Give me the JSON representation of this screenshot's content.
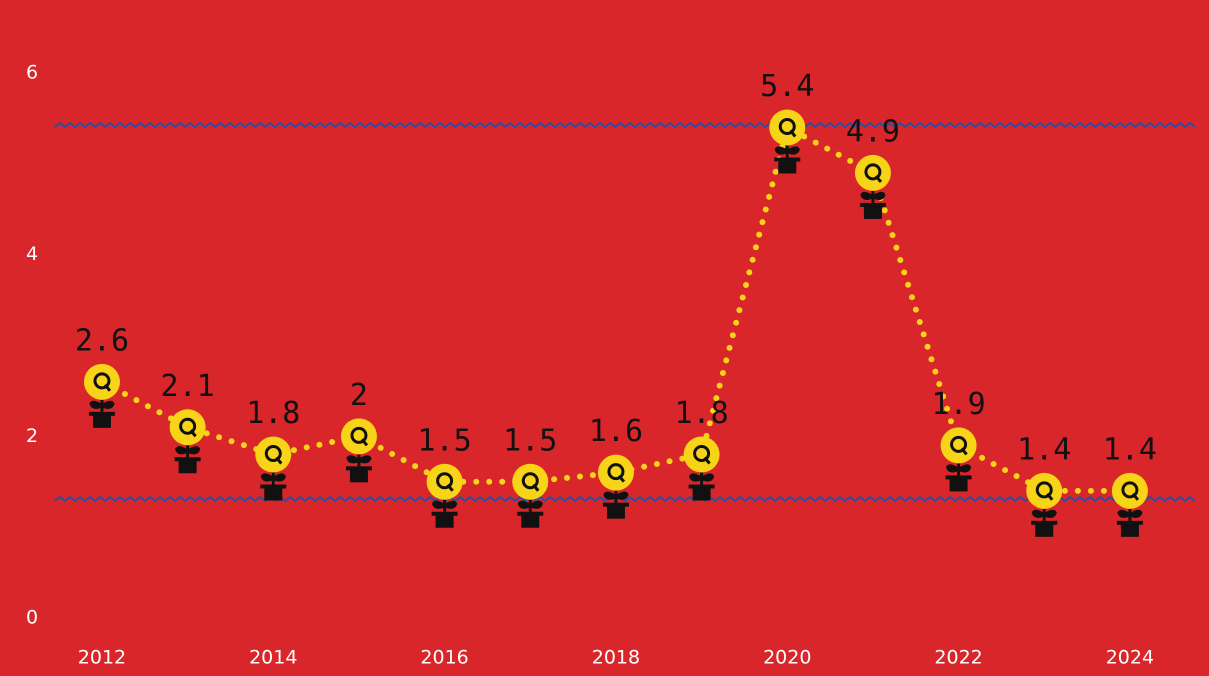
{
  "chart_data": {
    "type": "line",
    "x": [
      2012,
      2013,
      2014,
      2015,
      2016,
      2017,
      2018,
      2019,
      2020,
      2021,
      2022,
      2023,
      2024
    ],
    "series": [
      {
        "color": "#f7d417",
        "values": [
          2.6,
          2.1,
          1.8,
          2.0,
          1.5,
          1.5,
          1.6,
          1.8,
          5.4,
          4.9,
          1.9,
          1.4,
          1.4
        ]
      }
    ],
    "xlim": [
      2011.3,
      2024.9
    ],
    "xticks": [
      2012,
      2014,
      2016,
      2018,
      2020,
      2022,
      2024
    ],
    "ylim": [
      0,
      6
    ],
    "yticks": [
      0,
      2,
      4,
      6
    ]
  }
}
